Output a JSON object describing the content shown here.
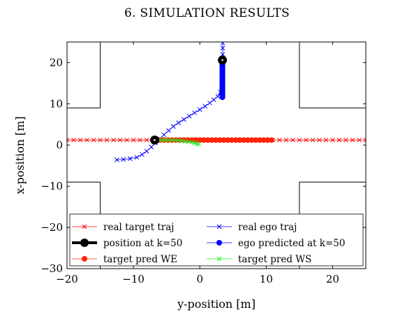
{
  "page_header": "6. SIMULATION RESULTS",
  "chart_data": {
    "type": "scatter",
    "xlabel": "y-position [m]",
    "ylabel": "x-position [m]",
    "xlim": [
      -20,
      25
    ],
    "ylim": [
      -30,
      25
    ],
    "xticks": [
      -20,
      -10,
      0,
      10,
      20
    ],
    "yticks": [
      20,
      10,
      0,
      -10,
      -20,
      -30
    ],
    "grid": false,
    "legend_position": "bottom",
    "road_boundaries": [
      {
        "x": [
          -20,
          -15,
          -15
        ],
        "y": [
          9,
          9,
          25
        ]
      },
      {
        "x": [
          15,
          15,
          25
        ],
        "y": [
          25,
          9,
          9
        ]
      },
      {
        "x": [
          -20,
          -15,
          -15
        ],
        "y": [
          -9,
          -9,
          -30
        ]
      },
      {
        "x": [
          15,
          15,
          25
        ],
        "y": [
          -30,
          -9,
          -9
        ]
      }
    ],
    "series": [
      {
        "name": "real target traj",
        "color": "#ff0000",
        "marker": "x",
        "x": [
          -20,
          -19,
          -18,
          -17,
          -16,
          -15,
          -14,
          -13,
          -12,
          -11,
          -10,
          -9,
          -8,
          -7,
          -6,
          -5,
          -4,
          -3,
          -2,
          -1,
          0,
          1,
          2,
          3,
          4,
          5,
          6,
          7,
          8,
          9,
          10,
          11,
          12,
          13,
          14,
          15,
          16,
          17,
          18,
          19,
          20,
          21,
          22,
          23,
          24,
          25
        ],
        "y": [
          1.2,
          1.2,
          1.2,
          1.2,
          1.2,
          1.2,
          1.2,
          1.2,
          1.2,
          1.2,
          1.2,
          1.2,
          1.2,
          1.2,
          1.2,
          1.2,
          1.2,
          1.2,
          1.2,
          1.2,
          1.2,
          1.2,
          1.2,
          1.2,
          1.2,
          1.2,
          1.2,
          1.2,
          1.2,
          1.2,
          1.2,
          1.2,
          1.2,
          1.2,
          1.2,
          1.2,
          1.2,
          1.2,
          1.2,
          1.2,
          1.2,
          1.2,
          1.2,
          1.2,
          1.2,
          1.2
        ]
      },
      {
        "name": "real ego traj",
        "color": "#0000ff",
        "marker": "x",
        "x": [
          -12.5,
          -11.5,
          -10.5,
          -9.5,
          -8.7,
          -8,
          -7.3,
          -6.7,
          -6,
          -5.4,
          -4.7,
          -4,
          -3.2,
          -2.4,
          -1.6,
          -0.8,
          0,
          0.8,
          1.5,
          2.1,
          2.7,
          3.1,
          3.3,
          3.4,
          3.45,
          3.45,
          3.45,
          3.45,
          3.45
        ],
        "y": [
          -3.6,
          -3.5,
          -3.3,
          -3,
          -2.3,
          -1.5,
          -0.5,
          0.5,
          1.5,
          2.5,
          3.5,
          4.5,
          5.4,
          6.2,
          7,
          7.8,
          8.6,
          9.4,
          10.2,
          11,
          11.8,
          12.8,
          14,
          16,
          18,
          20,
          22,
          23.5,
          24.8
        ]
      },
      {
        "name": "position at k=50",
        "color": "#000000",
        "marker": "circle",
        "x": [
          -6.8,
          3.4
        ],
        "y": [
          1.2,
          20.6
        ]
      },
      {
        "name": "ego predicted at k=50",
        "color": "#0000ff",
        "marker": "circle",
        "x": [
          3.4,
          3.4,
          3.4,
          3.4,
          3.4,
          3.4,
          3.4,
          3.4,
          3.4,
          3.4,
          3.4,
          3.4,
          3.4,
          3.4,
          3.4,
          3.4,
          3.4,
          3.4,
          3.4,
          3.4
        ],
        "y": [
          20.6,
          20.1,
          19.6,
          19.1,
          18.6,
          18.1,
          17.6,
          17.1,
          16.6,
          16.1,
          15.6,
          15.1,
          14.6,
          14.1,
          13.6,
          13.1,
          12.6,
          12.1,
          11.8,
          11.6
        ]
      },
      {
        "name": "target pred WE",
        "color": "#ff2200",
        "marker": "circle",
        "x": [
          -6,
          -5.4,
          -4.8,
          -4.2,
          -3.6,
          -3,
          -2.4,
          -1.8,
          -1.2,
          -0.6,
          0,
          0.6,
          1.2,
          1.8,
          2.4,
          3,
          3.6,
          4.2,
          4.8,
          5.4,
          6,
          6.6,
          7.2,
          7.8,
          8.4,
          9,
          9.6,
          10.2,
          10.8
        ],
        "y": [
          1.2,
          1.2,
          1.2,
          1.2,
          1.2,
          1.2,
          1.2,
          1.2,
          1.2,
          1.2,
          1.2,
          1.2,
          1.2,
          1.2,
          1.2,
          1.2,
          1.2,
          1.2,
          1.2,
          1.2,
          1.2,
          1.2,
          1.2,
          1.2,
          1.2,
          1.2,
          1.2,
          1.2,
          1.2
        ]
      },
      {
        "name": "target pred WS",
        "color": "#22ee22",
        "marker": "x",
        "x": [
          -6.2,
          -5.7,
          -5.2,
          -4.7,
          -4.2,
          -3.7,
          -3.2,
          -2.7,
          -2.2,
          -1.7,
          -1.2,
          -0.8,
          -0.5,
          -0.2
        ],
        "y": [
          1.2,
          1.2,
          1.2,
          1.2,
          1.2,
          1.15,
          1.1,
          1.0,
          0.9,
          0.8,
          0.65,
          0.5,
          0.35,
          0.2
        ]
      }
    ]
  }
}
